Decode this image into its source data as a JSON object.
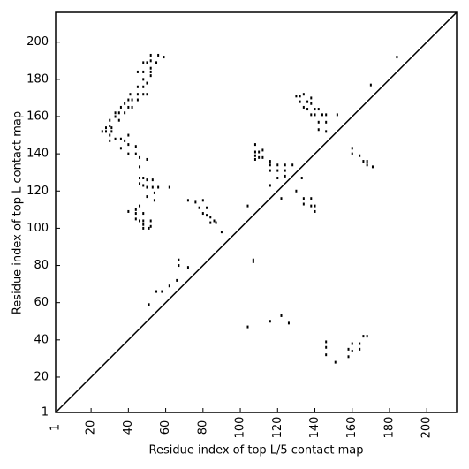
{
  "chart_data": {
    "type": "scatter",
    "x_label": "Residue index of top L/5 contact map",
    "y_label": "Residue index of top L contact map",
    "xlim": [
      1,
      216
    ],
    "ylim": [
      1,
      216
    ],
    "xticks": [
      1,
      20,
      40,
      60,
      80,
      100,
      120,
      140,
      160,
      180,
      200
    ],
    "yticks": [
      1,
      20,
      40,
      60,
      80,
      100,
      120,
      140,
      160,
      180,
      200
    ],
    "diagonal": true,
    "series": [
      {
        "color": "#000000",
        "x": [
          52,
          56,
          59,
          52,
          48,
          50,
          55,
          52,
          52,
          45,
          48,
          52,
          48,
          50,
          45,
          48,
          45,
          48,
          50,
          41,
          45,
          40,
          42,
          38,
          40,
          42,
          36,
          33,
          35,
          38,
          33,
          35,
          30,
          30,
          31,
          28,
          26,
          28,
          31,
          30,
          40,
          33,
          36,
          38,
          30,
          40,
          44,
          36,
          40,
          44,
          46,
          50,
          46,
          46,
          48,
          50,
          53,
          46,
          48,
          50,
          53,
          56,
          62,
          54,
          50,
          54,
          46,
          44,
          40,
          44,
          48,
          44,
          46,
          48,
          52,
          48,
          52,
          48,
          51,
          90,
          80,
          82,
          78,
          82,
          76,
          80,
          72,
          84,
          86,
          84,
          87,
          67,
          67,
          72,
          66,
          62,
          58,
          55,
          51,
          104,
          107,
          107,
          104,
          116,
          122,
          126,
          108,
          108,
          110,
          112,
          108,
          112,
          110,
          108,
          116,
          116,
          120,
          124,
          128,
          116,
          120,
          124,
          120,
          124,
          116,
          122,
          130,
          132,
          134,
          138,
          132,
          136,
          138,
          134,
          136,
          140,
          142,
          138,
          140,
          144,
          146,
          152,
          142,
          146,
          142,
          146,
          130,
          133,
          134,
          138,
          134,
          138,
          140,
          140,
          170,
          160,
          160,
          164,
          166,
          168,
          168,
          171,
          184,
          146,
          146,
          146,
          151,
          158,
          158,
          160,
          160,
          164,
          164,
          166,
          168
        ],
        "y": [
          193,
          193,
          192,
          190,
          189,
          189,
          189,
          186,
          184,
          184,
          184,
          182,
          180,
          178,
          176,
          176,
          172,
          172,
          172,
          172,
          169,
          169,
          169,
          167,
          165,
          165,
          165,
          162,
          162,
          162,
          160,
          158,
          158,
          155,
          154,
          154,
          152,
          152,
          152,
          150,
          150,
          148,
          148,
          147,
          147,
          145,
          144,
          143,
          140,
          140,
          138,
          137,
          133,
          127,
          127,
          126,
          126,
          124,
          123,
          122,
          122,
          122,
          122,
          119,
          117,
          115,
          112,
          110,
          109,
          108,
          108,
          105,
          104,
          104,
          104,
          102,
          101,
          100,
          100,
          98,
          108,
          107,
          111,
          111,
          114,
          115,
          115,
          106,
          104,
          103,
          103,
          83,
          80,
          79,
          72,
          69,
          66,
          66,
          59,
          112,
          83,
          82,
          47,
          50,
          53,
          49,
          145,
          141,
          141,
          142,
          139,
          138,
          138,
          137,
          136,
          134,
          134,
          134,
          134,
          131,
          131,
          131,
          127,
          128,
          123,
          116,
          171,
          171,
          172,
          170,
          168,
          168,
          167,
          165,
          164,
          164,
          164,
          161,
          161,
          161,
          161,
          161,
          157,
          157,
          153,
          152,
          120,
          127,
          116,
          116,
          113,
          112,
          112,
          109,
          177,
          143,
          140,
          139,
          136,
          136,
          134,
          133,
          192,
          39,
          36,
          32,
          28,
          31,
          35,
          34,
          38,
          35,
          38,
          42,
          42
        ]
      }
    ]
  }
}
